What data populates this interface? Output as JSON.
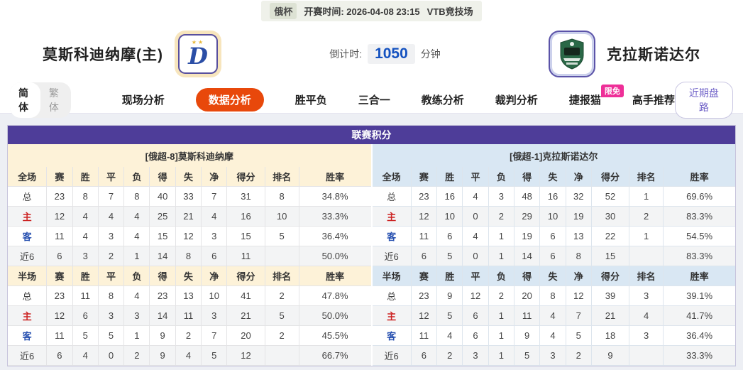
{
  "top_bar": {
    "league": "俄杯",
    "kickoff_label": "开赛时间:",
    "kickoff_time": "2026-04-08 23:15",
    "venue": "VTB竞技场"
  },
  "match_header": {
    "home_team": "莫斯科迪纳摩(主)",
    "away_team": "克拉斯诺达尔",
    "home_logo_icon": "dynamo-moscow-crest",
    "home_logo_letter": "D",
    "home_logo_stars": "★★",
    "away_logo_icon": "krasnodar-bull-crest",
    "countdown_label": "倒计时:",
    "countdown_value": "1050",
    "countdown_unit": "分钟"
  },
  "nav": {
    "lang": [
      {
        "label": "简体",
        "active": true
      },
      {
        "label": "繁体",
        "active": false
      }
    ],
    "tabs": [
      {
        "label": "现场分析"
      },
      {
        "label": "数据分析",
        "active": true
      },
      {
        "label": "胜平负"
      },
      {
        "label": "三合一"
      },
      {
        "label": "教练分析"
      },
      {
        "label": "裁判分析"
      },
      {
        "label": "捷报猫",
        "badge": "限免"
      },
      {
        "label": "高手推荐"
      }
    ],
    "recent_button": "近期盘路"
  },
  "standings": {
    "title": "联赛积分",
    "home": {
      "banner": "[俄超-8]莫斯科迪纳摩",
      "sections": [
        {
          "header": [
            "全场",
            "赛",
            "胜",
            "平",
            "负",
            "得",
            "失",
            "净",
            "得分",
            "排名",
            "胜率"
          ],
          "rows": [
            {
              "label": "总",
              "values": [
                "23",
                "8",
                "7",
                "8",
                "40",
                "33",
                "7",
                "31",
                "8",
                "34.8%"
              ]
            },
            {
              "label": "主",
              "values": [
                "12",
                "4",
                "4",
                "4",
                "25",
                "21",
                "4",
                "16",
                "10",
                "33.3%"
              ]
            },
            {
              "label": "客",
              "values": [
                "11",
                "4",
                "3",
                "4",
                "15",
                "12",
                "3",
                "15",
                "5",
                "36.4%"
              ]
            },
            {
              "label": "近6",
              "values": [
                "6",
                "3",
                "2",
                "1",
                "14",
                "8",
                "6",
                "11",
                "",
                "50.0%"
              ]
            }
          ]
        },
        {
          "header": [
            "半场",
            "赛",
            "胜",
            "平",
            "负",
            "得",
            "失",
            "净",
            "得分",
            "排名",
            "胜率"
          ],
          "rows": [
            {
              "label": "总",
              "values": [
                "23",
                "11",
                "8",
                "4",
                "23",
                "13",
                "10",
                "41",
                "2",
                "47.8%"
              ]
            },
            {
              "label": "主",
              "values": [
                "12",
                "6",
                "3",
                "3",
                "14",
                "11",
                "3",
                "21",
                "5",
                "50.0%"
              ]
            },
            {
              "label": "客",
              "values": [
                "11",
                "5",
                "5",
                "1",
                "9",
                "2",
                "7",
                "20",
                "2",
                "45.5%"
              ]
            },
            {
              "label": "近6",
              "values": [
                "6",
                "4",
                "0",
                "2",
                "9",
                "4",
                "5",
                "12",
                "",
                "66.7%"
              ]
            }
          ]
        }
      ]
    },
    "away": {
      "banner": "[俄超-1]克拉斯诺达尔",
      "sections": [
        {
          "header": [
            "全场",
            "赛",
            "胜",
            "平",
            "负",
            "得",
            "失",
            "净",
            "得分",
            "排名",
            "胜率"
          ],
          "rows": [
            {
              "label": "总",
              "values": [
                "23",
                "16",
                "4",
                "3",
                "48",
                "16",
                "32",
                "52",
                "1",
                "69.6%"
              ]
            },
            {
              "label": "主",
              "values": [
                "12",
                "10",
                "0",
                "2",
                "29",
                "10",
                "19",
                "30",
                "2",
                "83.3%"
              ]
            },
            {
              "label": "客",
              "values": [
                "11",
                "6",
                "4",
                "1",
                "19",
                "6",
                "13",
                "22",
                "1",
                "54.5%"
              ]
            },
            {
              "label": "近6",
              "values": [
                "6",
                "5",
                "0",
                "1",
                "14",
                "6",
                "8",
                "15",
                "",
                "83.3%"
              ]
            }
          ]
        },
        {
          "header": [
            "半场",
            "赛",
            "胜",
            "平",
            "负",
            "得",
            "失",
            "净",
            "得分",
            "排名",
            "胜率"
          ],
          "rows": [
            {
              "label": "总",
              "values": [
                "23",
                "9",
                "12",
                "2",
                "20",
                "8",
                "12",
                "39",
                "3",
                "39.1%"
              ]
            },
            {
              "label": "主",
              "values": [
                "12",
                "5",
                "6",
                "1",
                "11",
                "4",
                "7",
                "21",
                "4",
                "41.7%"
              ]
            },
            {
              "label": "客",
              "values": [
                "11",
                "4",
                "6",
                "1",
                "9",
                "4",
                "5",
                "18",
                "3",
                "36.4%"
              ]
            },
            {
              "label": "近6",
              "values": [
                "6",
                "2",
                "3",
                "1",
                "5",
                "3",
                "2",
                "9",
                "",
                "33.3%"
              ]
            }
          ]
        }
      ]
    }
  },
  "colors": {
    "title_purple": "#4e3d99",
    "active_tab_orange": "#e8480b",
    "badge_pink": "#ee2f98",
    "countdown_blue": "#1552c0",
    "home_banner_bg": "#fdf2d8",
    "away_banner_bg": "#d9e7f3",
    "home_row_red": "#cc2222",
    "away_row_blue": "#2750b0"
  }
}
